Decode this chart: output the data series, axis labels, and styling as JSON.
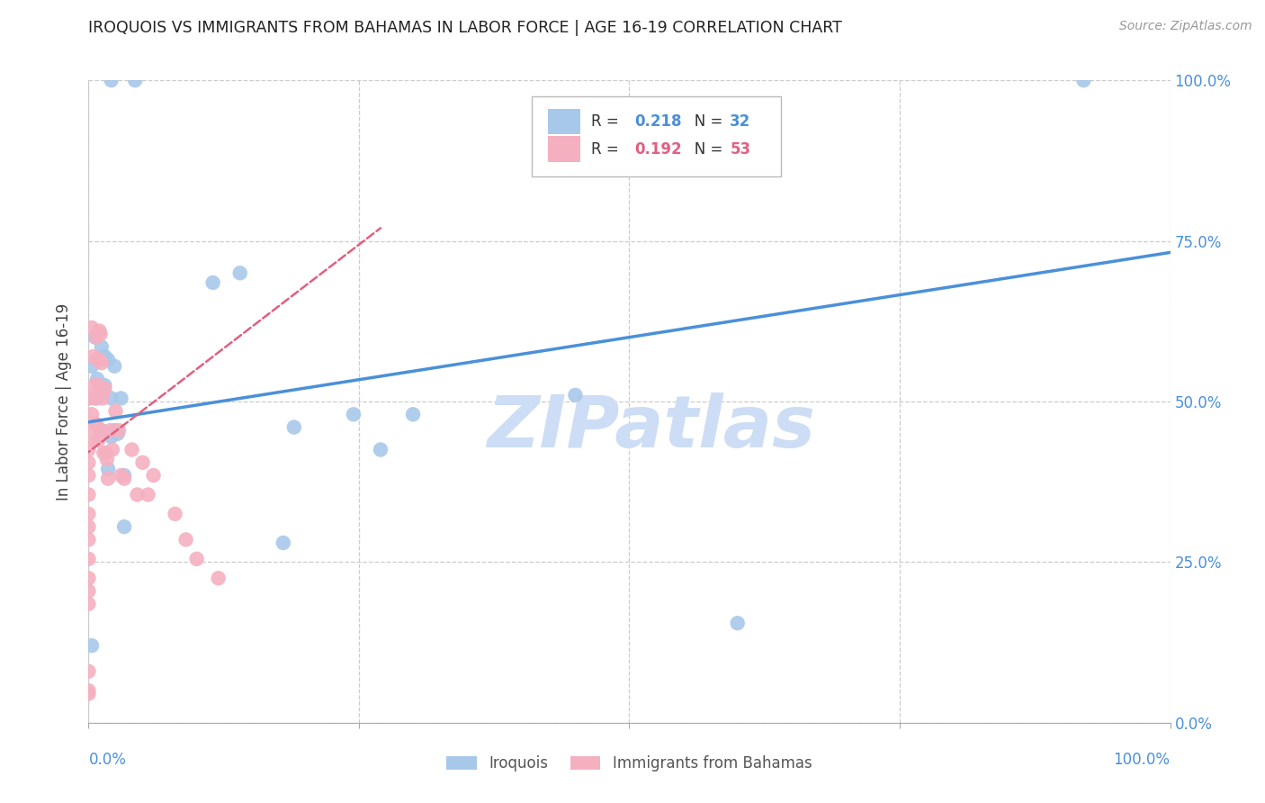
{
  "title": "IROQUOIS VS IMMIGRANTS FROM BAHAMAS IN LABOR FORCE | AGE 16-19 CORRELATION CHART",
  "source": "Source: ZipAtlas.com",
  "ylabel": "In Labor Force | Age 16-19",
  "xlim": [
    0.0,
    1.0
  ],
  "ylim": [
    0.0,
    1.0
  ],
  "xticks": [
    0.0,
    0.25,
    0.5,
    0.75,
    1.0
  ],
  "yticks": [
    0.0,
    0.25,
    0.5,
    0.75,
    1.0
  ],
  "xtick_labels": [
    "0.0%",
    "",
    "",
    "",
    "100.0%"
  ],
  "ytick_labels_right": [
    "0.0%",
    "25.0%",
    "50.0%",
    "75.0%",
    "100.0%"
  ],
  "grid_color": "#cccccc",
  "background_color": "#ffffff",
  "iroquois_color": "#a8c8ea",
  "immigrants_color": "#f5b0c0",
  "iroquois_line_color": "#4a90d9",
  "immigrants_line_color": "#e06080",
  "watermark_color": "#ccddf5",
  "legend_r_iroquois": "0.218",
  "legend_n_iroquois": "32",
  "legend_r_immigrants": "0.192",
  "legend_n_immigrants": "53",
  "iroquois_scatter_x": [
    0.021,
    0.043,
    0.0,
    0.003,
    0.006,
    0.008,
    0.012,
    0.015,
    0.015,
    0.018,
    0.021,
    0.024,
    0.024,
    0.03,
    0.033,
    0.033,
    0.115,
    0.14,
    0.19,
    0.245,
    0.27,
    0.3,
    0.003,
    0.18,
    0.6,
    0.92,
    0.45,
    0.008,
    0.012,
    0.018,
    0.021,
    0.027
  ],
  "iroquois_scatter_y": [
    1.0,
    1.0,
    0.505,
    0.555,
    0.6,
    0.535,
    0.585,
    0.57,
    0.525,
    0.565,
    0.505,
    0.555,
    0.455,
    0.505,
    0.385,
    0.305,
    0.685,
    0.7,
    0.46,
    0.48,
    0.425,
    0.48,
    0.12,
    0.28,
    0.155,
    1.0,
    0.51,
    0.505,
    0.455,
    0.395,
    0.445,
    0.45
  ],
  "immigrants_scatter_x": [
    0.0,
    0.0,
    0.0,
    0.0,
    0.0,
    0.0,
    0.0,
    0.0,
    0.0,
    0.0,
    0.0,
    0.0,
    0.0,
    0.0,
    0.0,
    0.0,
    0.003,
    0.004,
    0.005,
    0.006,
    0.007,
    0.008,
    0.009,
    0.01,
    0.01,
    0.011,
    0.012,
    0.013,
    0.015,
    0.016,
    0.018,
    0.02,
    0.022,
    0.025,
    0.028,
    0.03,
    0.033,
    0.04,
    0.045,
    0.05,
    0.055,
    0.06,
    0.08,
    0.09,
    0.1,
    0.12,
    0.003,
    0.005,
    0.007,
    0.009,
    0.011,
    0.014,
    0.017
  ],
  "immigrants_scatter_y": [
    0.505,
    0.46,
    0.425,
    0.405,
    0.385,
    0.355,
    0.325,
    0.305,
    0.285,
    0.255,
    0.225,
    0.205,
    0.185,
    0.08,
    0.05,
    0.045,
    0.615,
    0.57,
    0.525,
    0.505,
    0.6,
    0.565,
    0.525,
    0.61,
    0.565,
    0.605,
    0.56,
    0.505,
    0.52,
    0.42,
    0.38,
    0.455,
    0.425,
    0.485,
    0.455,
    0.385,
    0.38,
    0.425,
    0.355,
    0.405,
    0.355,
    0.385,
    0.325,
    0.285,
    0.255,
    0.225,
    0.48,
    0.44,
    0.465,
    0.44,
    0.455,
    0.42,
    0.41
  ],
  "iroquois_trend_x": [
    0.0,
    1.0
  ],
  "iroquois_trend_y": [
    0.468,
    0.732
  ],
  "immigrants_trend_x": [
    -0.005,
    0.27
  ],
  "immigrants_trend_y": [
    0.415,
    0.77
  ]
}
